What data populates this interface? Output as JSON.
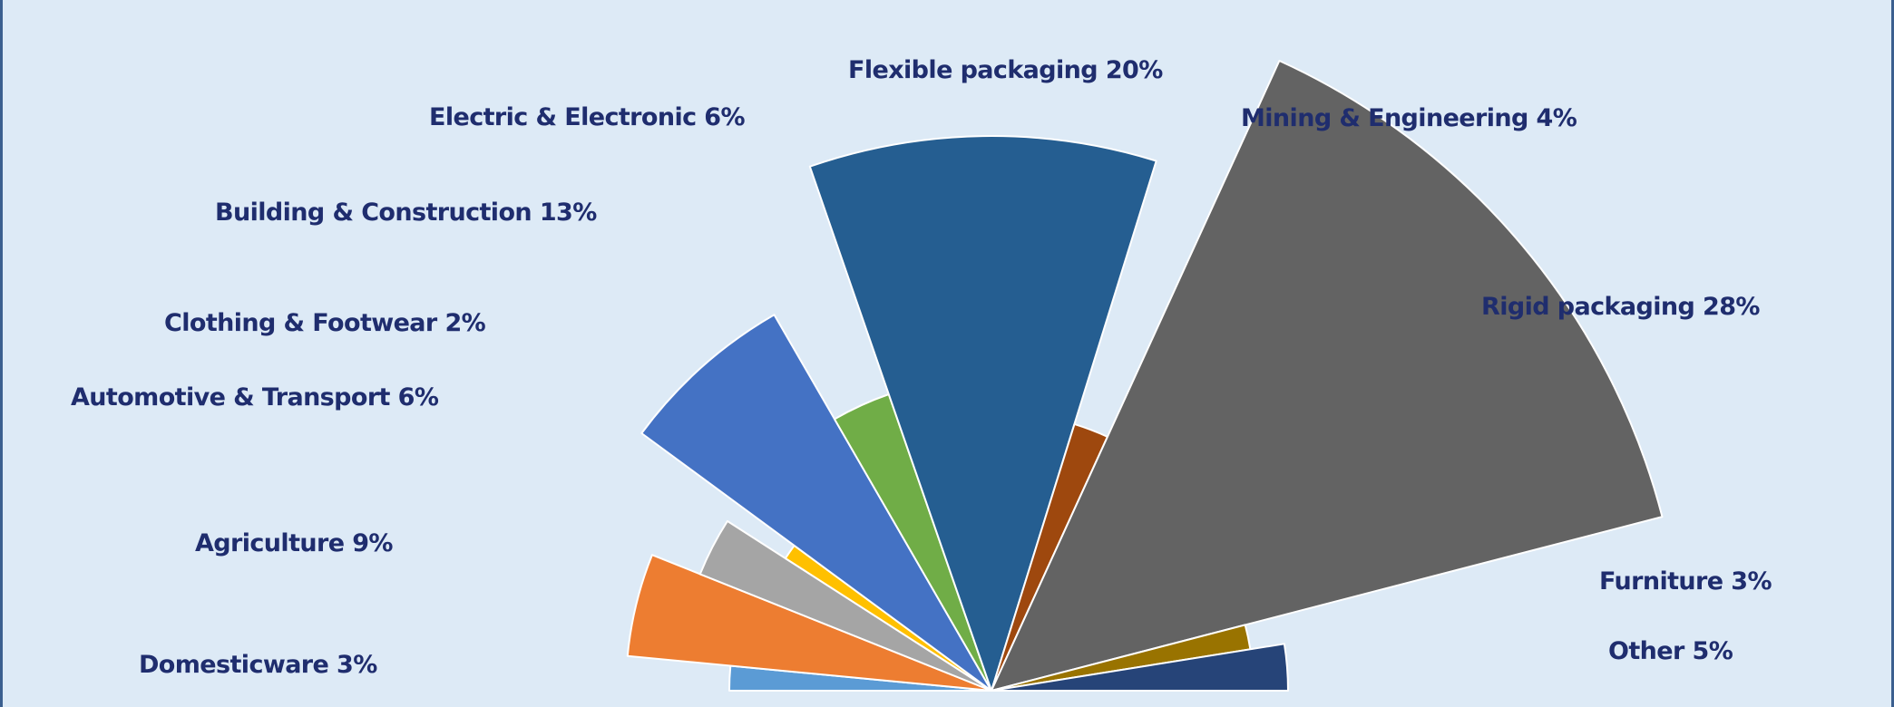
{
  "chart_data": {
    "type": "pie",
    "title": "",
    "layout": "semicircle",
    "slices": [
      {
        "label": "Domesticware 3%",
        "value": 3,
        "color": "#5b9bd5"
      },
      {
        "label": "Agriculture 9%",
        "value": 9,
        "color": "#ed7d31"
      },
      {
        "label": "Automotive & Transport 6%",
        "value": 6,
        "color": "#a5a5a5"
      },
      {
        "label": "Clothing & Footwear 2%",
        "value": 2,
        "color": "#ffc000"
      },
      {
        "label": "Building & Construction 13%",
        "value": 13,
        "color": "#4472c4"
      },
      {
        "label": "Electric & Electronic 6%",
        "value": 6,
        "color": "#70ad47"
      },
      {
        "label": "Flexible packaging 20%",
        "value": 20,
        "color": "#255e91"
      },
      {
        "label": "Mining & Engineering 4%",
        "value": 4,
        "color": "#9e480e"
      },
      {
        "label": "Rigid packaging 28%",
        "value": 28,
        "color": "#636363"
      },
      {
        "label": "Furniture 3%",
        "value": 3,
        "color": "#997300"
      },
      {
        "label": "Other 5%",
        "value": 5,
        "color": "#264478"
      }
    ]
  }
}
